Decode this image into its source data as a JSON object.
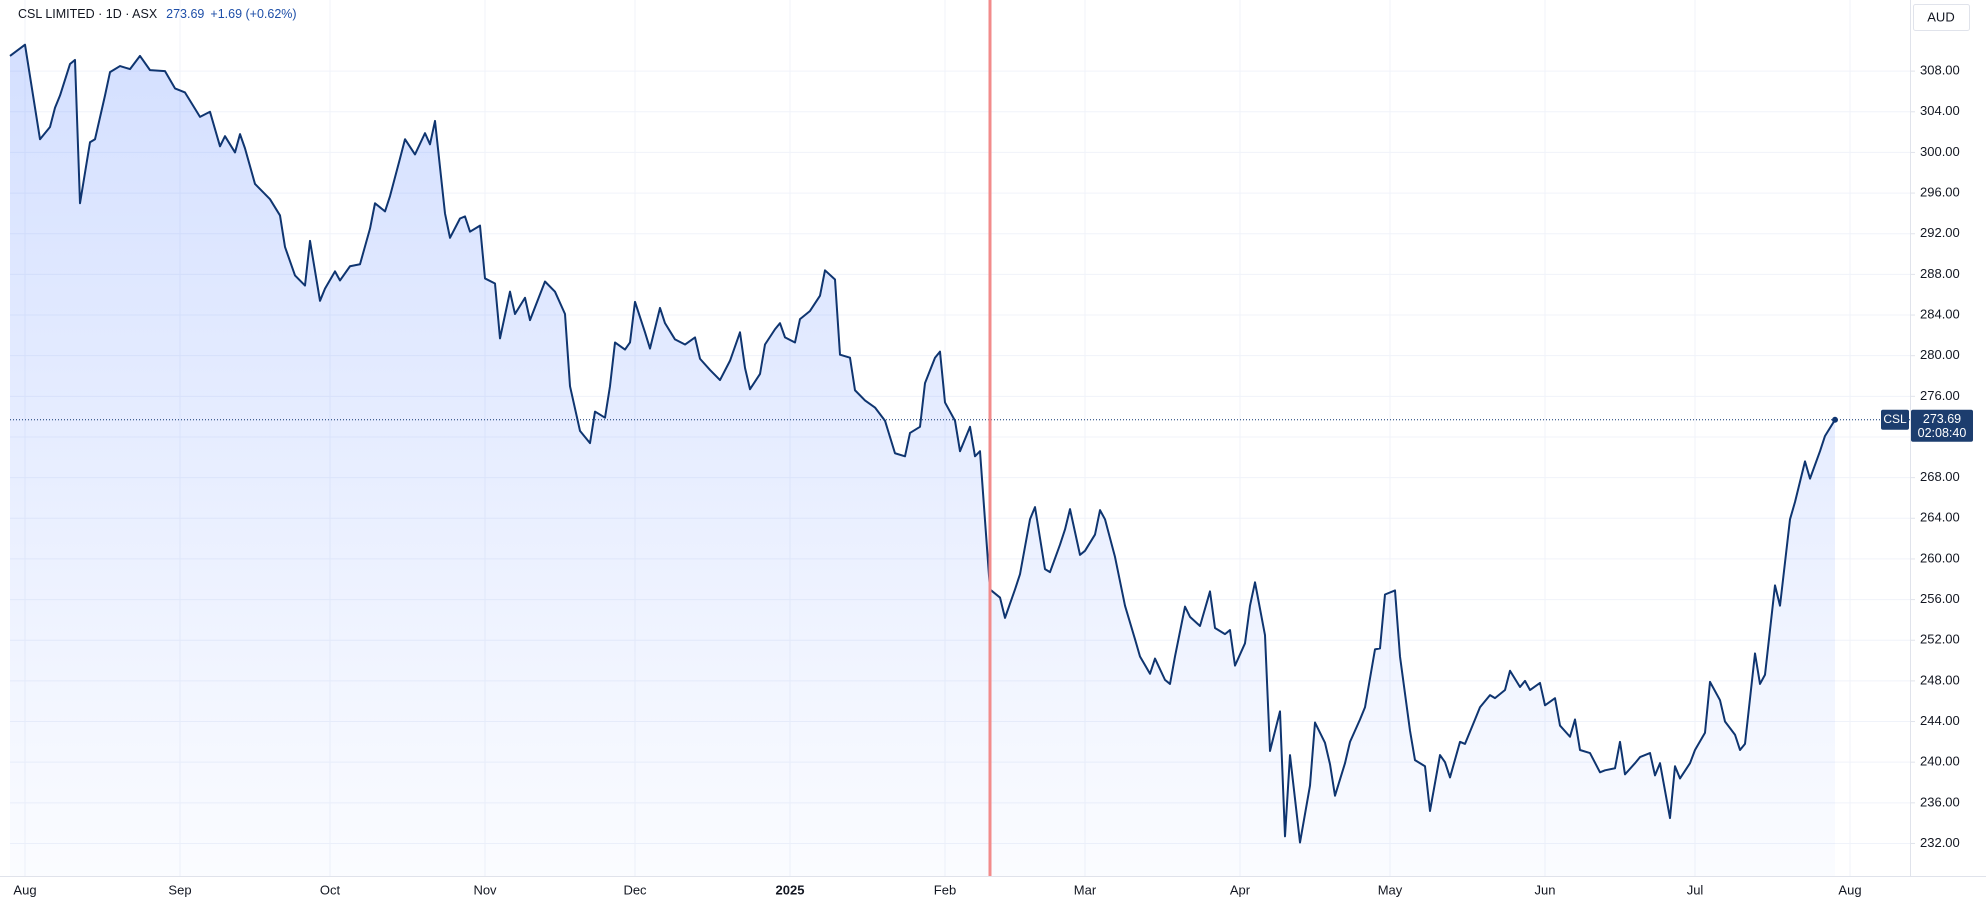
{
  "chart_data": {
    "type": "line",
    "title": "CSL LIMITED · 1D · ASX",
    "change_label": "+1.69 (+0.62%)",
    "symbol": "CSL",
    "countdown": "02:08:40",
    "currency": "AUD",
    "x": [
      0,
      3,
      6,
      8,
      9,
      10,
      12,
      13,
      14,
      16,
      17,
      19,
      20,
      22,
      24,
      26,
      28,
      31,
      33,
      35,
      37,
      38,
      40,
      42,
      43,
      45,
      46,
      47,
      49,
      52,
      54,
      55,
      57,
      59,
      60,
      62,
      63,
      65,
      66,
      68,
      70,
      72,
      73,
      75,
      76,
      78,
      79,
      81,
      83,
      84,
      85,
      87,
      88,
      90,
      91,
      92,
      94,
      95,
      97,
      98,
      100,
      101,
      103,
      104,
      107,
      109,
      111,
      112,
      114,
      116,
      117,
      119,
      120,
      121,
      123,
      124,
      125,
      127,
      128,
      130,
      131,
      133,
      135,
      137,
      138,
      140,
      142,
      144,
      146,
      147,
      148,
      150,
      151,
      153,
      154,
      155,
      157,
      158,
      160,
      162,
      163,
      165,
      166,
      168,
      169,
      171,
      173,
      175,
      177,
      179,
      180,
      182,
      183,
      185,
      186,
      187,
      189,
      190,
      192,
      193,
      194,
      196,
      198,
      199,
      201,
      202,
      204,
      205,
      207,
      208,
      210,
      211,
      212,
      214,
      215,
      217,
      218,
      219,
      221,
      223,
      225,
      226,
      228,
      229,
      231,
      232,
      233,
      235,
      236,
      238,
      240,
      241,
      243,
      244,
      245,
      247,
      248,
      249,
      251,
      252,
      254,
      255,
      256,
      258,
      260,
      261,
      263,
      264,
      265,
      267,
      268,
      270,
      271,
      273,
      274,
      275,
      277,
      278,
      280,
      281,
      283,
      284,
      286,
      287,
      288,
      290,
      291,
      293,
      294,
      296,
      297,
      299,
      300,
      302,
      303,
      304,
      306,
      307,
      309,
      310,
      312,
      313,
      314,
      316,
      318,
      319,
      321,
      322,
      323,
      325,
      326,
      328,
      329,
      330,
      332,
      333,
      334,
      336,
      337,
      339,
      340,
      342,
      343,
      345,
      346,
      347,
      349,
      350,
      351,
      353,
      354,
      356,
      357,
      359,
      360,
      362,
      363,
      365
    ],
    "series": [
      {
        "name": "CSL",
        "color": "#0f3570",
        "values": [
          309.5,
          310.6,
          301.3,
          302.5,
          304.4,
          305.6,
          308.7,
          309.1,
          295,
          301,
          301.3,
          305.6,
          307.9,
          308.5,
          308.2,
          309.5,
          308.1,
          308,
          306.3,
          305.9,
          304.3,
          303.5,
          304,
          300.6,
          301.6,
          300,
          301.8,
          300.4,
          296.9,
          295.4,
          293.8,
          290.7,
          287.9,
          286.9,
          291.3,
          285.4,
          286.6,
          288.3,
          287.4,
          288.8,
          289,
          292.5,
          295,
          294.2,
          295.7,
          299.4,
          301.3,
          299.8,
          301.9,
          300.8,
          303.1,
          294,
          291.6,
          293.5,
          293.7,
          292.2,
          292.8,
          287.6,
          287.1,
          281.7,
          286.3,
          284.1,
          285.7,
          283.5,
          287.3,
          286.3,
          284.1,
          277,
          272.6,
          271.4,
          274.5,
          273.9,
          277,
          281.3,
          280.6,
          281.3,
          285.3,
          282.3,
          280.7,
          284.7,
          283.2,
          281.6,
          281.1,
          281.8,
          279.7,
          278.6,
          277.6,
          279.5,
          282.3,
          278.8,
          276.7,
          278.2,
          281.1,
          282.6,
          283.2,
          281.8,
          281.3,
          283.6,
          284.4,
          285.9,
          288.4,
          287.5,
          280.1,
          279.8,
          276.6,
          275.6,
          274.9,
          273.6,
          270.4,
          270.1,
          272.4,
          273,
          277.3,
          279.8,
          280.4,
          275.4,
          273.6,
          270.6,
          273,
          270.1,
          270.6,
          257,
          256.2,
          254.2,
          257,
          258.5,
          263.9,
          265.1,
          259,
          258.7,
          261.4,
          262.9,
          264.9,
          260.4,
          260.8,
          262.4,
          264.8,
          263.9,
          260.2,
          255.4,
          252.1,
          250.4,
          248.7,
          250.2,
          248.1,
          247.7,
          250.4,
          255.3,
          254.3,
          253.4,
          256.8,
          253.2,
          252.6,
          253,
          249.5,
          251.7,
          255.4,
          257.7,
          252.5,
          241.1,
          245,
          232.7,
          240.7,
          232.1,
          237.7,
          243.9,
          241.9,
          239.8,
          236.7,
          239.9,
          242,
          244.2,
          245.4,
          251.1,
          251.2,
          256.5,
          256.9,
          250.4,
          243.1,
          240.2,
          239.6,
          235.2,
          240.7,
          240,
          238.5,
          242,
          241.8,
          244.2,
          245.4,
          246.6,
          246.3,
          247.1,
          249,
          247.4,
          248,
          247.1,
          247.8,
          245.6,
          246.3,
          243.6,
          242.5,
          244.2,
          241.2,
          240.9,
          239,
          239.2,
          239.4,
          242,
          238.8,
          239.9,
          240.5,
          240.9,
          238.7,
          239.9,
          234.5,
          239.6,
          238.4,
          239.9,
          241.2,
          242.9,
          247.9,
          246.1,
          244,
          242.7,
          241.2,
          241.8,
          250.7,
          247.7,
          248.6,
          257.4,
          255.4,
          263.9,
          265.6,
          269.6,
          267.9,
          270.6,
          272.1,
          273.69
        ]
      }
    ],
    "xlim": [
      0,
      380
    ],
    "xticks": [
      {
        "value": 3,
        "label": "Aug"
      },
      {
        "value": 34,
        "label": "Sep"
      },
      {
        "value": 64,
        "label": "Oct"
      },
      {
        "value": 95,
        "label": "Nov"
      },
      {
        "value": 125,
        "label": "Dec"
      },
      {
        "value": 156,
        "label": "2025"
      },
      {
        "value": 187,
        "label": "Feb"
      },
      {
        "value": 215,
        "label": "Mar"
      },
      {
        "value": 246,
        "label": "Apr"
      },
      {
        "value": 276,
        "label": "May"
      },
      {
        "value": 307,
        "label": "Jun"
      },
      {
        "value": 337,
        "label": "Jul"
      },
      {
        "value": 368,
        "label": "Aug"
      }
    ],
    "ylim": [
      228.8,
      315
    ],
    "yticks": [
      {
        "value": 232,
        "label": "232.00"
      },
      {
        "value": 236,
        "label": "236.00"
      },
      {
        "value": 240,
        "label": "240.00"
      },
      {
        "value": 244,
        "label": "244.00"
      },
      {
        "value": 248,
        "label": "248.00"
      },
      {
        "value": 252,
        "label": "252.00"
      },
      {
        "value": 256,
        "label": "256.00"
      },
      {
        "value": 260,
        "label": "260.00"
      },
      {
        "value": 264,
        "label": "264.00"
      },
      {
        "value": 268,
        "label": "268.00"
      },
      {
        "value": 272,
        "label": "272.00"
      },
      {
        "value": 276,
        "label": "276.00"
      },
      {
        "value": 280,
        "label": "280.00"
      },
      {
        "value": 284,
        "label": "284.00"
      },
      {
        "value": 288,
        "label": "288.00"
      },
      {
        "value": 292,
        "label": "292.00"
      },
      {
        "value": 296,
        "label": "296.00"
      },
      {
        "value": 300,
        "label": "300.00"
      },
      {
        "value": 304,
        "label": "304.00"
      },
      {
        "value": 308,
        "label": "308.00"
      }
    ],
    "grid": true,
    "vline": {
      "x": 196,
      "color": "#f28b8b"
    }
  }
}
